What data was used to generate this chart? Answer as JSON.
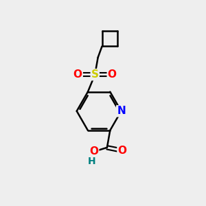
{
  "background_color": "#eeeeee",
  "bond_color": "#000000",
  "atom_colors": {
    "S": "#cccc00",
    "O": "#ff0000",
    "N": "#0000ff",
    "C": "#000000",
    "H": "#008080"
  },
  "bond_width": 1.8,
  "figsize": [
    3.0,
    3.0
  ],
  "dpi": 100
}
